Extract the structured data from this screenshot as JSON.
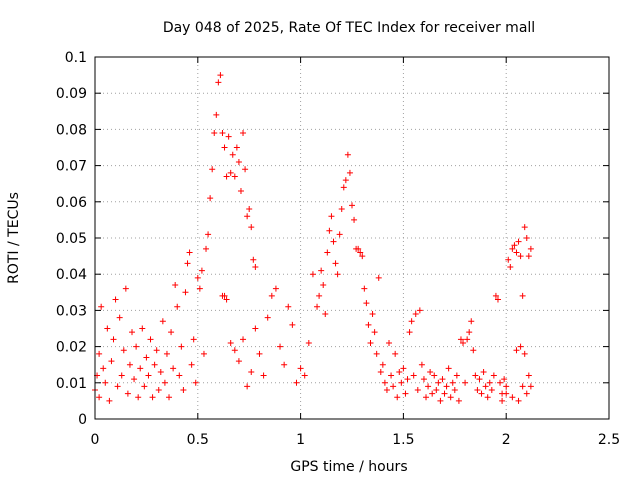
{
  "chart_data": {
    "type": "scatter",
    "title": "Day 048 of 2025, Rate Of TEC Index for receiver mall",
    "xlabel": "GPS time / hours",
    "ylabel": "ROTI / TECUs",
    "xlim": [
      0,
      2.5
    ],
    "ylim": [
      0,
      0.1
    ],
    "x_ticks": [
      0,
      0.5,
      1,
      1.5,
      2,
      2.5
    ],
    "x_tick_labels": [
      "0",
      "0.5",
      "1",
      "1.5",
      "2",
      "2.5"
    ],
    "y_ticks": [
      0,
      0.01,
      0.02,
      0.03,
      0.04,
      0.05,
      0.06,
      0.07,
      0.08,
      0.09,
      0.1
    ],
    "y_tick_labels": [
      "0",
      "0.01",
      "0.02",
      "0.03",
      "0.04",
      "0.05",
      "0.06",
      "0.07",
      "0.08",
      "0.09",
      "0.1"
    ],
    "grid": true,
    "marker": "plus",
    "color": "#ff0000",
    "points": [
      [
        0.0,
        0.008
      ],
      [
        0.01,
        0.012
      ],
      [
        0.02,
        0.006
      ],
      [
        0.02,
        0.018
      ],
      [
        0.03,
        0.031
      ],
      [
        0.04,
        0.014
      ],
      [
        0.05,
        0.01
      ],
      [
        0.06,
        0.025
      ],
      [
        0.07,
        0.005
      ],
      [
        0.08,
        0.016
      ],
      [
        0.09,
        0.022
      ],
      [
        0.1,
        0.033
      ],
      [
        0.11,
        0.009
      ],
      [
        0.12,
        0.028
      ],
      [
        0.13,
        0.012
      ],
      [
        0.14,
        0.019
      ],
      [
        0.15,
        0.036
      ],
      [
        0.16,
        0.007
      ],
      [
        0.17,
        0.015
      ],
      [
        0.18,
        0.024
      ],
      [
        0.19,
        0.011
      ],
      [
        0.2,
        0.02
      ],
      [
        0.21,
        0.006
      ],
      [
        0.22,
        0.014
      ],
      [
        0.23,
        0.025
      ],
      [
        0.24,
        0.009
      ],
      [
        0.25,
        0.017
      ],
      [
        0.26,
        0.012
      ],
      [
        0.27,
        0.022
      ],
      [
        0.28,
        0.006
      ],
      [
        0.29,
        0.015
      ],
      [
        0.3,
        0.019
      ],
      [
        0.31,
        0.008
      ],
      [
        0.32,
        0.013
      ],
      [
        0.33,
        0.027
      ],
      [
        0.34,
        0.01
      ],
      [
        0.35,
        0.018
      ],
      [
        0.36,
        0.006
      ],
      [
        0.37,
        0.024
      ],
      [
        0.38,
        0.014
      ],
      [
        0.39,
        0.037
      ],
      [
        0.4,
        0.031
      ],
      [
        0.41,
        0.012
      ],
      [
        0.42,
        0.02
      ],
      [
        0.43,
        0.008
      ],
      [
        0.44,
        0.035
      ],
      [
        0.45,
        0.043
      ],
      [
        0.46,
        0.046
      ],
      [
        0.47,
        0.015
      ],
      [
        0.48,
        0.022
      ],
      [
        0.49,
        0.01
      ],
      [
        0.5,
        0.039
      ],
      [
        0.51,
        0.036
      ],
      [
        0.52,
        0.041
      ],
      [
        0.53,
        0.018
      ],
      [
        0.54,
        0.047
      ],
      [
        0.55,
        0.051
      ],
      [
        0.56,
        0.061
      ],
      [
        0.57,
        0.069
      ],
      [
        0.58,
        0.079
      ],
      [
        0.59,
        0.084
      ],
      [
        0.6,
        0.093
      ],
      [
        0.61,
        0.095
      ],
      [
        0.62,
        0.079
      ],
      [
        0.63,
        0.075
      ],
      [
        0.64,
        0.067
      ],
      [
        0.65,
        0.078
      ],
      [
        0.66,
        0.068
      ],
      [
        0.67,
        0.073
      ],
      [
        0.68,
        0.067
      ],
      [
        0.69,
        0.075
      ],
      [
        0.7,
        0.071
      ],
      [
        0.71,
        0.063
      ],
      [
        0.72,
        0.079
      ],
      [
        0.73,
        0.069
      ],
      [
        0.74,
        0.056
      ],
      [
        0.75,
        0.058
      ],
      [
        0.76,
        0.053
      ],
      [
        0.77,
        0.044
      ],
      [
        0.78,
        0.042
      ],
      [
        0.62,
        0.034
      ],
      [
        0.63,
        0.034
      ],
      [
        0.64,
        0.033
      ],
      [
        0.66,
        0.021
      ],
      [
        0.68,
        0.019
      ],
      [
        0.7,
        0.016
      ],
      [
        0.72,
        0.022
      ],
      [
        0.74,
        0.009
      ],
      [
        0.76,
        0.013
      ],
      [
        0.78,
        0.025
      ],
      [
        0.8,
        0.018
      ],
      [
        0.82,
        0.012
      ],
      [
        0.84,
        0.028
      ],
      [
        0.86,
        0.034
      ],
      [
        0.88,
        0.036
      ],
      [
        0.9,
        0.02
      ],
      [
        0.92,
        0.015
      ],
      [
        0.94,
        0.031
      ],
      [
        0.96,
        0.026
      ],
      [
        0.98,
        0.01
      ],
      [
        1.0,
        0.014
      ],
      [
        1.02,
        0.012
      ],
      [
        1.04,
        0.021
      ],
      [
        1.06,
        0.04
      ],
      [
        1.08,
        0.031
      ],
      [
        1.09,
        0.034
      ],
      [
        1.1,
        0.041
      ],
      [
        1.11,
        0.037
      ],
      [
        1.12,
        0.029
      ],
      [
        1.13,
        0.046
      ],
      [
        1.14,
        0.052
      ],
      [
        1.15,
        0.056
      ],
      [
        1.16,
        0.049
      ],
      [
        1.17,
        0.043
      ],
      [
        1.18,
        0.04
      ],
      [
        1.19,
        0.051
      ],
      [
        1.2,
        0.058
      ],
      [
        1.21,
        0.064
      ],
      [
        1.22,
        0.066
      ],
      [
        1.23,
        0.073
      ],
      [
        1.24,
        0.068
      ],
      [
        1.25,
        0.059
      ],
      [
        1.26,
        0.055
      ],
      [
        1.27,
        0.047
      ],
      [
        1.28,
        0.047
      ],
      [
        1.29,
        0.046
      ],
      [
        1.3,
        0.045
      ],
      [
        1.31,
        0.036
      ],
      [
        1.32,
        0.032
      ],
      [
        1.33,
        0.026
      ],
      [
        1.34,
        0.021
      ],
      [
        1.35,
        0.029
      ],
      [
        1.36,
        0.024
      ],
      [
        1.37,
        0.018
      ],
      [
        1.38,
        0.039
      ],
      [
        1.39,
        0.013
      ],
      [
        1.4,
        0.015
      ],
      [
        1.41,
        0.01
      ],
      [
        1.42,
        0.008
      ],
      [
        1.43,
        0.021
      ],
      [
        1.44,
        0.012
      ],
      [
        1.45,
        0.009
      ],
      [
        1.46,
        0.018
      ],
      [
        1.47,
        0.006
      ],
      [
        1.48,
        0.013
      ],
      [
        1.49,
        0.01
      ],
      [
        1.5,
        0.014
      ],
      [
        1.51,
        0.007
      ],
      [
        1.52,
        0.011
      ],
      [
        1.53,
        0.024
      ],
      [
        1.54,
        0.027
      ],
      [
        1.55,
        0.012
      ],
      [
        1.56,
        0.029
      ],
      [
        1.57,
        0.008
      ],
      [
        1.58,
        0.03
      ],
      [
        1.59,
        0.015
      ],
      [
        1.6,
        0.011
      ],
      [
        1.61,
        0.006
      ],
      [
        1.62,
        0.009
      ],
      [
        1.63,
        0.013
      ],
      [
        1.64,
        0.007
      ],
      [
        1.65,
        0.012
      ],
      [
        1.66,
        0.008
      ],
      [
        1.67,
        0.01
      ],
      [
        1.68,
        0.005
      ],
      [
        1.69,
        0.011
      ],
      [
        1.7,
        0.007
      ],
      [
        1.71,
        0.009
      ],
      [
        1.72,
        0.014
      ],
      [
        1.73,
        0.006
      ],
      [
        1.74,
        0.01
      ],
      [
        1.75,
        0.008
      ],
      [
        1.76,
        0.012
      ],
      [
        1.77,
        0.005
      ],
      [
        1.78,
        0.022
      ],
      [
        1.79,
        0.021
      ],
      [
        1.8,
        0.01
      ],
      [
        1.81,
        0.022
      ],
      [
        1.82,
        0.024
      ],
      [
        1.83,
        0.027
      ],
      [
        1.84,
        0.019
      ],
      [
        1.85,
        0.012
      ],
      [
        1.86,
        0.008
      ],
      [
        1.87,
        0.011
      ],
      [
        1.88,
        0.007
      ],
      [
        1.89,
        0.013
      ],
      [
        1.9,
        0.009
      ],
      [
        1.91,
        0.006
      ],
      [
        1.92,
        0.01
      ],
      [
        1.93,
        0.008
      ],
      [
        1.94,
        0.012
      ],
      [
        1.95,
        0.034
      ],
      [
        1.96,
        0.033
      ],
      [
        1.97,
        0.01
      ],
      [
        1.98,
        0.007
      ],
      [
        1.99,
        0.011
      ],
      [
        2.0,
        0.009
      ],
      [
        2.01,
        0.044
      ],
      [
        2.02,
        0.042
      ],
      [
        2.03,
        0.047
      ],
      [
        2.04,
        0.048
      ],
      [
        2.05,
        0.046
      ],
      [
        2.06,
        0.049
      ],
      [
        2.07,
        0.045
      ],
      [
        2.08,
        0.034
      ],
      [
        2.09,
        0.053
      ],
      [
        2.1,
        0.05
      ],
      [
        2.11,
        0.045
      ],
      [
        2.12,
        0.047
      ],
      [
        2.05,
        0.019
      ],
      [
        2.07,
        0.02
      ],
      [
        2.09,
        0.018
      ],
      [
        2.1,
        0.007
      ],
      [
        2.11,
        0.012
      ],
      [
        2.12,
        0.009
      ],
      [
        2.03,
        0.006
      ],
      [
        2.06,
        0.005
      ],
      [
        2.08,
        0.009
      ],
      [
        1.98,
        0.005
      ],
      [
        2.0,
        0.007
      ]
    ]
  }
}
